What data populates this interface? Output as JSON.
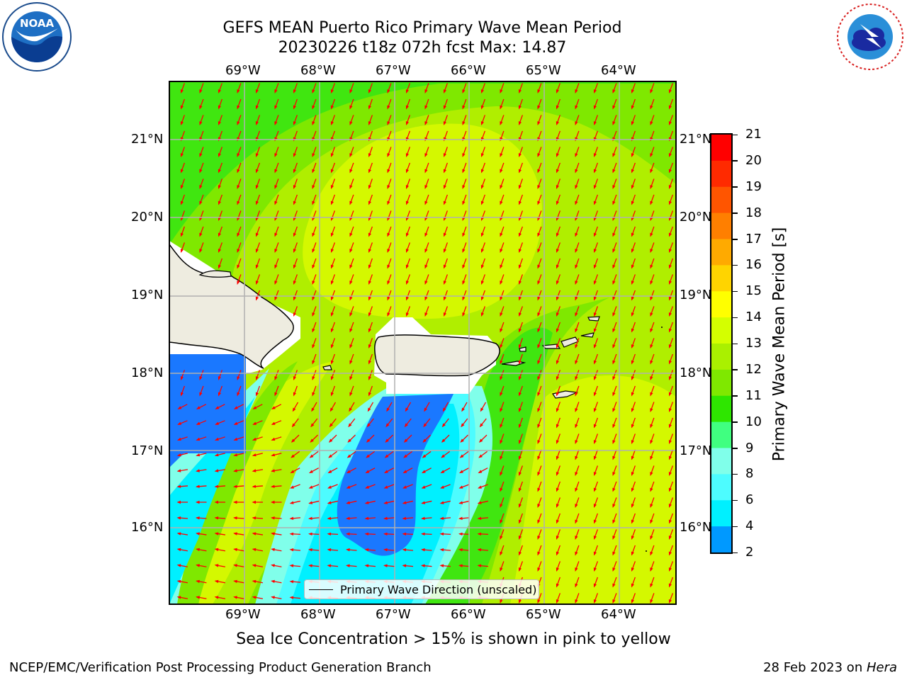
{
  "title": {
    "line1": "GEFS MEAN Puerto Rico Primary Wave Mean Period",
    "line2": "20230226 t18z 072h fcst   Max: 14.87"
  },
  "logos": {
    "left": "NOAA",
    "right": "NATIONAL WEATHER SERVICE"
  },
  "map": {
    "lon_labels": [
      "69°W",
      "68°W",
      "67°W",
      "66°W",
      "65°W",
      "64°W"
    ],
    "lat_labels": [
      "21°N",
      "20°N",
      "19°N",
      "18°N",
      "17°N",
      "16°N"
    ],
    "legend_label": "Primary Wave Direction (unscaled)"
  },
  "colorbar": {
    "label": "Primary Wave Mean Period [s]",
    "ticks": [
      "21",
      "20",
      "19",
      "18",
      "17",
      "16",
      "15",
      "14",
      "13",
      "12",
      "11",
      "10",
      "9",
      "8",
      "6",
      "4",
      "2"
    ],
    "colors": [
      "#ff0000",
      "#ff2a00",
      "#ff5500",
      "#ff7f00",
      "#ffaa00",
      "#ffd400",
      "#ffff00",
      "#d4ff00",
      "#aaf000",
      "#7fe800",
      "#2ee600",
      "#40ff80",
      "#80ffea",
      "#4dfcff",
      "#00f0ff",
      "#0099ff",
      "#0000ff"
    ]
  },
  "footer": {
    "ice_note": "Sea Ice Concentration > 15% is shown in pink to yellow",
    "branch": "NCEP/EMC/Verification Post Processing Product Generation Branch",
    "date": "28 Feb 2023 on ",
    "host": "Hera"
  }
}
